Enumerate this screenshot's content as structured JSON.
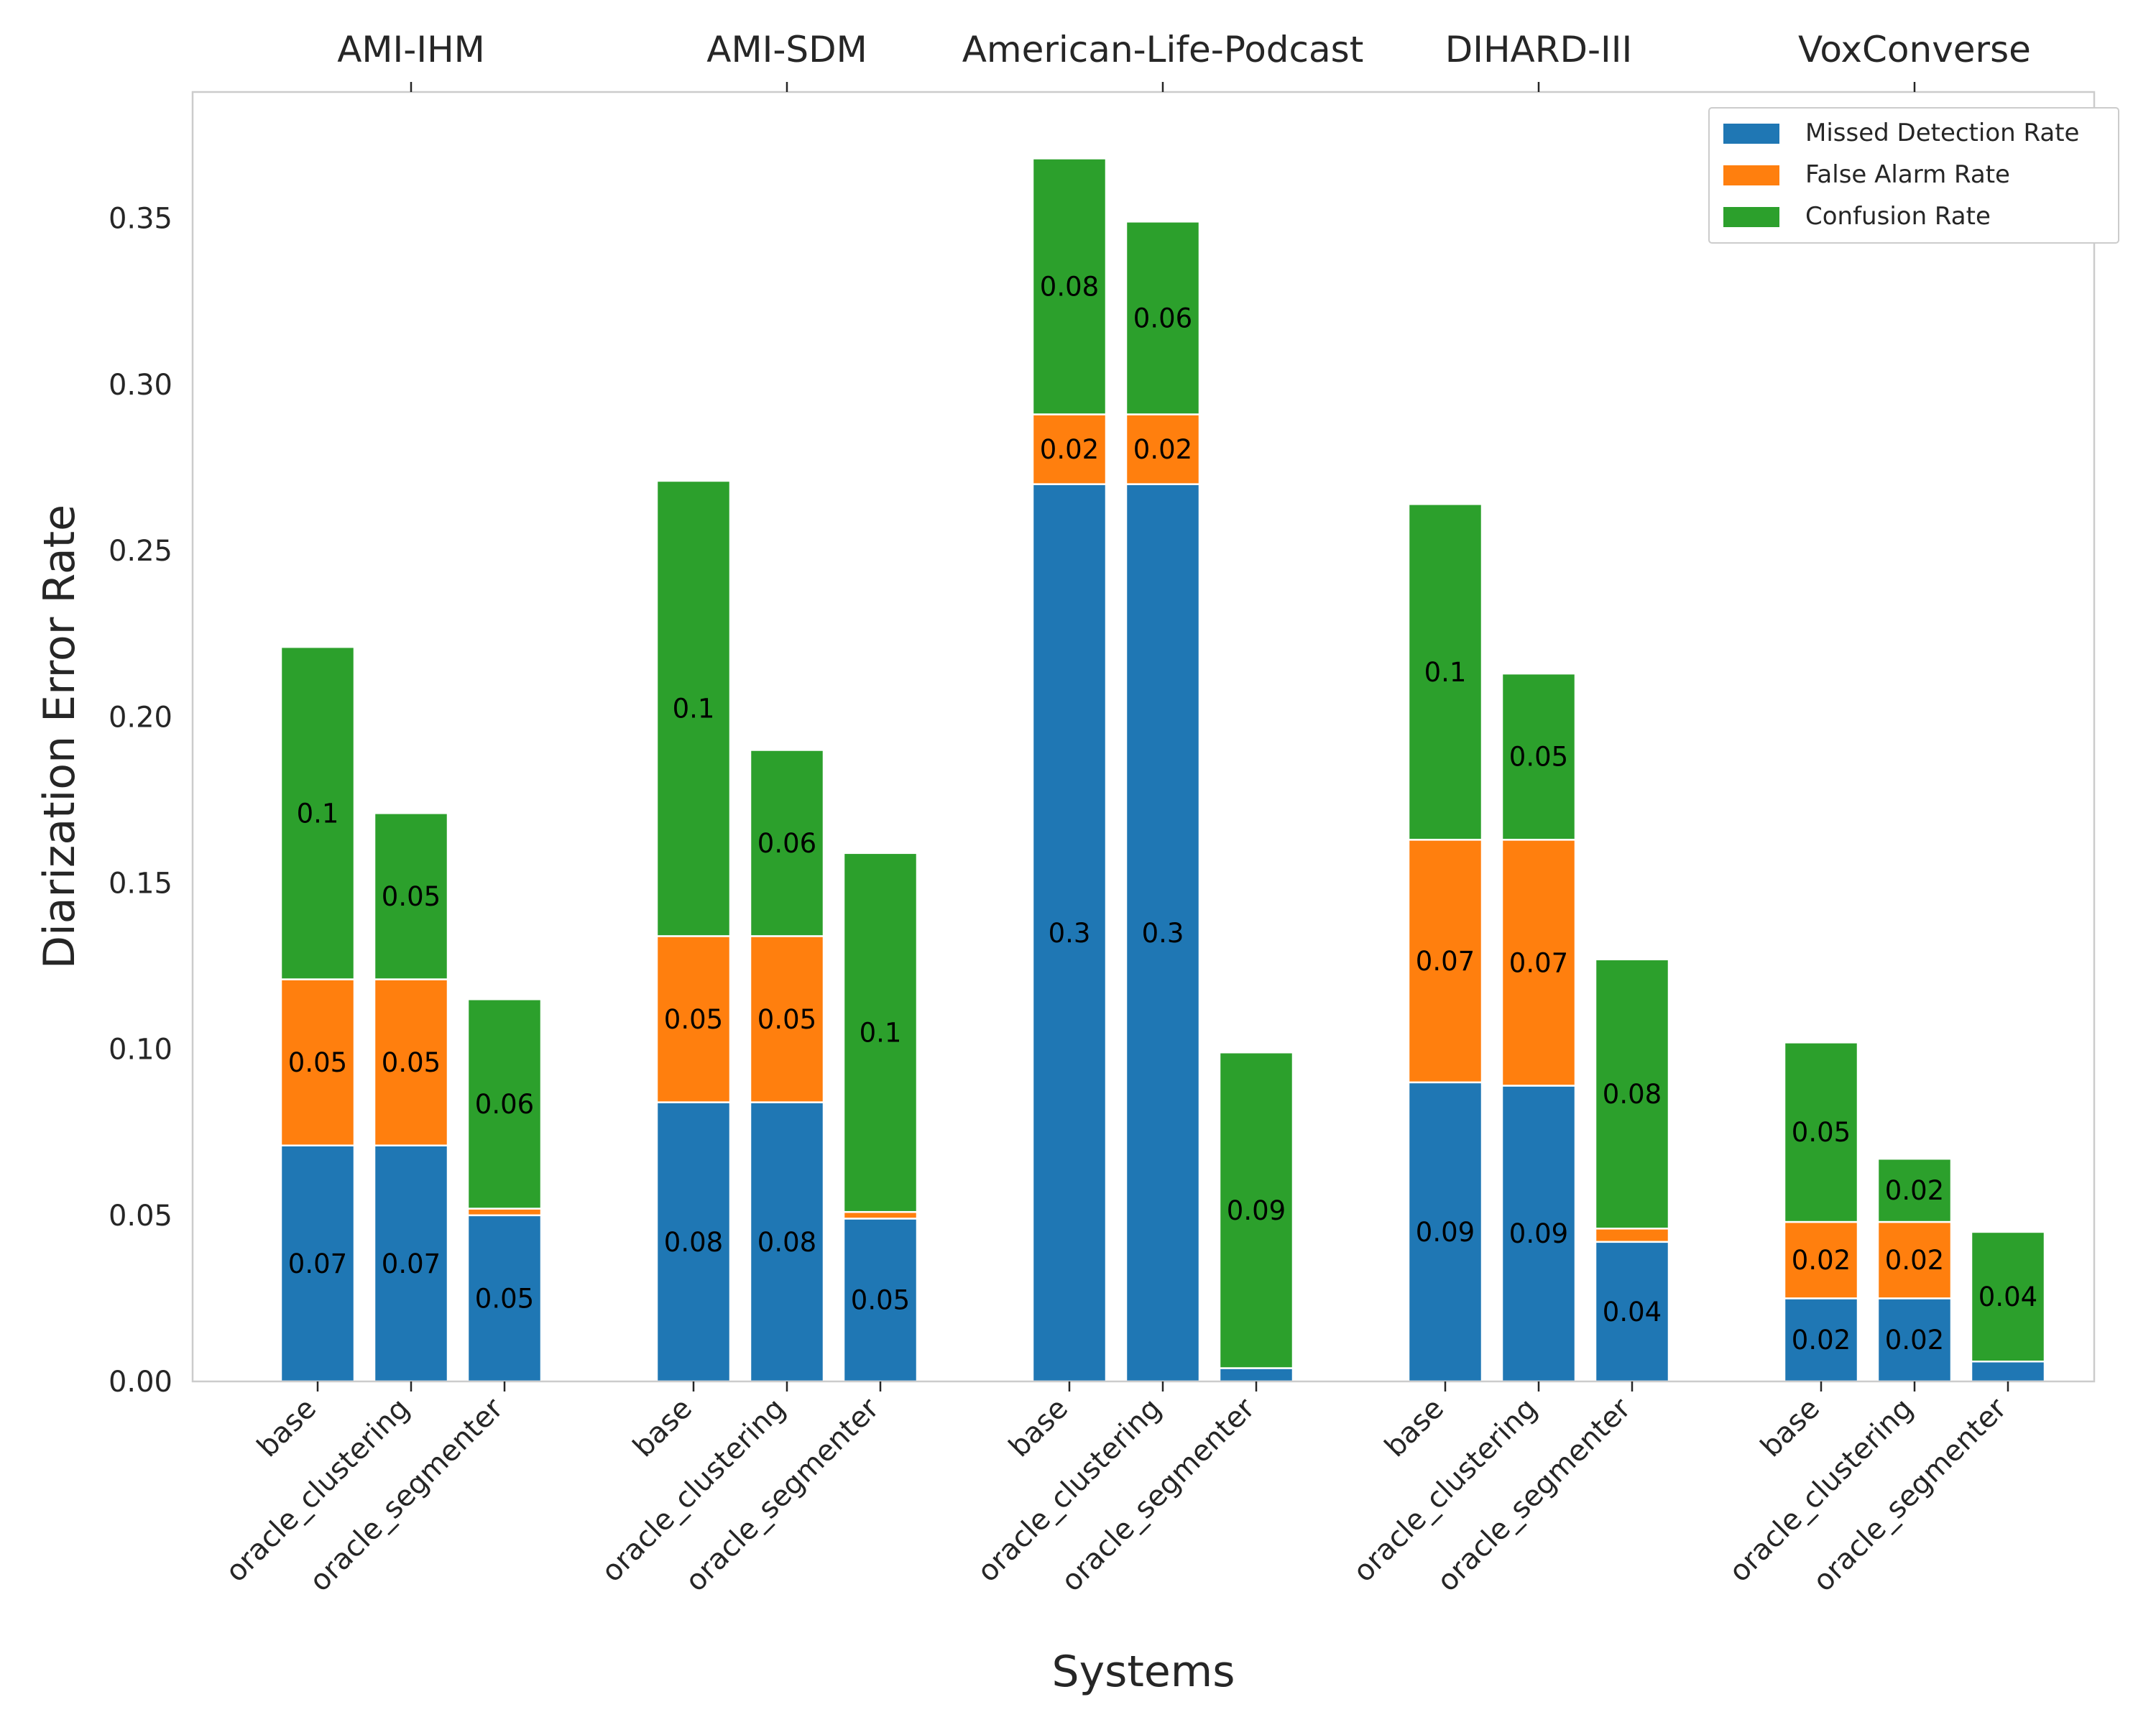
{
  "chart_data": {
    "type": "bar",
    "stacked": true,
    "xlabel": "Systems",
    "ylabel": "Diarization Error Rate",
    "ylim": [
      0,
      0.388
    ],
    "yticks": [
      "0.00",
      "0.05",
      "0.10",
      "0.15",
      "0.20",
      "0.25",
      "0.30",
      "0.35"
    ],
    "grid": false,
    "legend_position": "top-right",
    "systems": [
      "base",
      "oracle_clustering",
      "oracle_segmenter"
    ],
    "datasets": [
      "AMI-IHM",
      "AMI-SDM",
      "American-Life-Podcast",
      "DIHARD-III",
      "VoxConverse"
    ],
    "series": [
      {
        "name": "Missed Detection Rate",
        "color": "#1f77b4",
        "values": [
          [
            0.071,
            0.071,
            0.05
          ],
          [
            0.084,
            0.084,
            0.049
          ],
          [
            0.27,
            0.27,
            0.004
          ],
          [
            0.09,
            0.089,
            0.042
          ],
          [
            0.025,
            0.025,
            0.006
          ]
        ],
        "labels": [
          [
            "0.07",
            "0.07",
            "0.05"
          ],
          [
            "0.08",
            "0.08",
            "0.05"
          ],
          [
            "0.3",
            "0.3",
            ""
          ],
          [
            "0.09",
            "0.09",
            "0.04"
          ],
          [
            "0.02",
            "0.02",
            ""
          ]
        ]
      },
      {
        "name": "False Alarm Rate",
        "color": "#ff7f0e",
        "values": [
          [
            0.05,
            0.05,
            0.002
          ],
          [
            0.05,
            0.05,
            0.002
          ],
          [
            0.021,
            0.021,
            0.0
          ],
          [
            0.073,
            0.074,
            0.004
          ],
          [
            0.023,
            0.023,
            0.0
          ]
        ],
        "labels": [
          [
            "0.05",
            "0.05",
            ""
          ],
          [
            "0.05",
            "0.05",
            ""
          ],
          [
            "0.02",
            "0.02",
            ""
          ],
          [
            "0.07",
            "0.07",
            ""
          ],
          [
            "0.02",
            "0.02",
            ""
          ]
        ]
      },
      {
        "name": "Confusion Rate",
        "color": "#2ca02c",
        "values": [
          [
            0.1,
            0.05,
            0.063
          ],
          [
            0.137,
            0.056,
            0.108
          ],
          [
            0.077,
            0.058,
            0.095
          ],
          [
            0.101,
            0.05,
            0.081
          ],
          [
            0.054,
            0.019,
            0.039
          ]
        ],
        "labels": [
          [
            "0.1",
            "0.05",
            "0.06"
          ],
          [
            "0.1",
            "0.06",
            "0.1"
          ],
          [
            "0.08",
            "0.06",
            "0.09"
          ],
          [
            "0.1",
            "0.05",
            "0.08"
          ],
          [
            "0.05",
            "0.02",
            "0.04"
          ]
        ]
      }
    ]
  }
}
